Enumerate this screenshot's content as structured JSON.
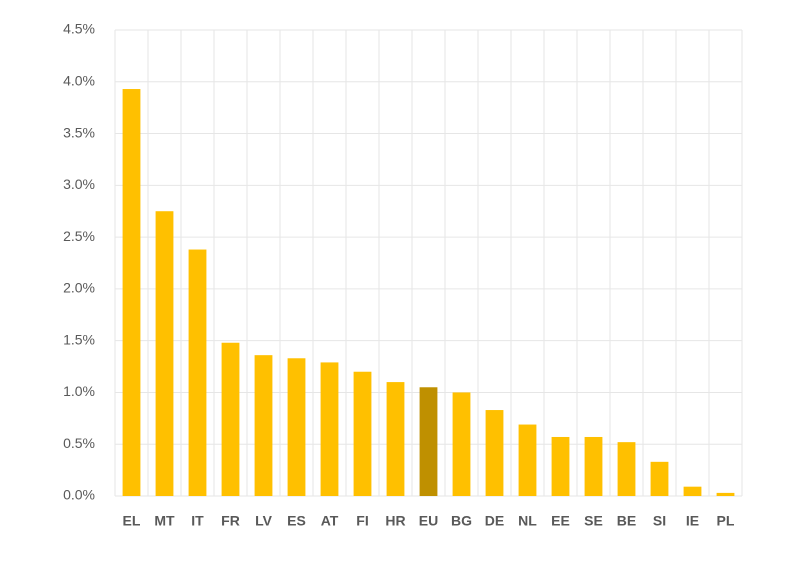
{
  "chart_data": {
    "type": "bar",
    "categories": [
      "EL",
      "MT",
      "IT",
      "FR",
      "LV",
      "ES",
      "AT",
      "FI",
      "HR",
      "EU",
      "BG",
      "DE",
      "NL",
      "EE",
      "SE",
      "BE",
      "SI",
      "IE",
      "PL"
    ],
    "values": [
      3.93,
      2.75,
      2.38,
      1.48,
      1.36,
      1.33,
      1.29,
      1.2,
      1.1,
      1.05,
      1.0,
      0.83,
      0.69,
      0.57,
      0.57,
      0.52,
      0.33,
      0.09,
      0.03
    ],
    "colors": [
      "#ffc000",
      "#ffc000",
      "#ffc000",
      "#ffc000",
      "#ffc000",
      "#ffc000",
      "#ffc000",
      "#ffc000",
      "#ffc000",
      "#bf9000",
      "#ffc000",
      "#ffc000",
      "#ffc000",
      "#ffc000",
      "#ffc000",
      "#ffc000",
      "#ffc000",
      "#ffc000",
      "#ffc000"
    ],
    "ylim": [
      0,
      4.5
    ],
    "yticks": [
      {
        "value": 0,
        "label": "0.0%"
      },
      {
        "value": 0.5,
        "label": "0.5%"
      },
      {
        "value": 1,
        "label": "1.0%"
      },
      {
        "value": 1.5,
        "label": "1.5%"
      },
      {
        "value": 2,
        "label": "2.0%"
      },
      {
        "value": 2.5,
        "label": "2.5%"
      },
      {
        "value": 3,
        "label": "3.0%"
      },
      {
        "value": 3.5,
        "label": "3.5%"
      },
      {
        "value": 4,
        "label": "4.0%"
      },
      {
        "value": 4.5,
        "label": "4.5%"
      }
    ],
    "grid": true
  }
}
